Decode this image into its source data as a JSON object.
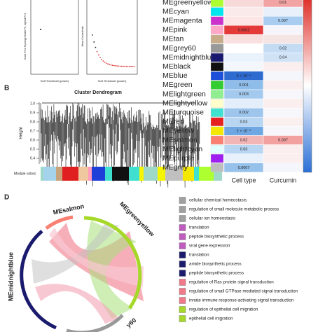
{
  "panel_labels": {
    "b": "B",
    "d": "D"
  },
  "scatter_plots": [
    {
      "x_label": "Soft Threshold (power)",
      "y_label": "Scale Free Topology Model Fit, signed R^2"
    },
    {
      "x_label": "Soft Threshold (power)",
      "y_label": "Mean Connectivity"
    }
  ],
  "dendrogram": {
    "title": "Cluster Dendrogram",
    "y_label": "Height",
    "y_ticks": [
      "0.4",
      "0.5",
      "0.6",
      "0.7",
      "0.8",
      "0.9",
      "1.0"
    ],
    "module_colors_label": "Module colors"
  },
  "heatmap": {
    "columns": [
      "Cell type",
      "Curcumin"
    ],
    "rows": [
      {
        "module": "MEgreenyellow",
        "color": "#adff2f",
        "fills": [
          "#f7d9d9",
          "#f2a3a3"
        ],
        "cells": [
          null,
          "0.01"
        ]
      },
      {
        "module": "MEcyan",
        "color": "#00e5ee",
        "fills": [
          "#fbeaea",
          "#e8f1fb"
        ],
        "cells": [
          null,
          null
        ]
      },
      {
        "module": "MEmagenta",
        "color": "#cc33cc",
        "fills": [
          "#fde5e5",
          "#a9cdf0"
        ],
        "cells": [
          null,
          "0.007"
        ]
      },
      {
        "module": "MEpink",
        "color": "#ffa8c8",
        "fills": [
          "#e53a3a",
          "#f5f5fb"
        ],
        "cells": [
          "0.0002",
          null
        ]
      },
      {
        "module": "MEtan",
        "color": "#c8ac8a",
        "fills": [
          "#f8e0e0",
          "#f4e4e4"
        ],
        "cells": [
          null,
          null
        ]
      },
      {
        "module": "MEgrey60",
        "color": "#999999",
        "fills": [
          "#ffffff",
          "#c3dcf4"
        ],
        "cells": [
          null,
          "0.02"
        ]
      },
      {
        "module": "MEmidnightblue",
        "color": "#191970",
        "fills": [
          "#eaf2fb",
          "#d0e3f6"
        ],
        "cells": [
          null,
          "0.04"
        ]
      },
      {
        "module": "MEblack",
        "color": "#111111",
        "fills": [
          "#f3f7fc",
          "#fbeeee"
        ],
        "cells": [
          null,
          null
        ]
      },
      {
        "module": "MEblue",
        "color": "#1e4fd8",
        "fills": [
          "#2d6bd1",
          "#f4f6fb"
        ],
        "cells": [
          "6 × 10⁻⁵",
          null
        ]
      },
      {
        "module": "MEgreen",
        "color": "#33cc33",
        "fills": [
          "#8fbde9",
          "#fbeeee"
        ],
        "cells": [
          "0.001",
          null
        ]
      },
      {
        "module": "MElightgreen",
        "color": "#90ee90",
        "fills": [
          "#a4c9ee",
          "#f7f7fb"
        ],
        "cells": [
          "0.003",
          null
        ]
      },
      {
        "module": "MElightyellow",
        "color": "#ffffcc",
        "fills": [
          "#e4eefa",
          "#fbeeee"
        ],
        "cells": [
          null,
          null
        ]
      },
      {
        "module": "MEturquoise",
        "color": "#40e0d0",
        "fills": [
          "#9ec6ed",
          "#f7f7fb"
        ],
        "cells": [
          "0.002",
          null
        ]
      },
      {
        "module": "MEred",
        "color": "#e62020",
        "fills": [
          "#b8d5f2",
          "#fbf0f0"
        ],
        "cells": [
          "0.03",
          null
        ]
      },
      {
        "module": "MEyellow",
        "color": "#f5e800",
        "fills": [
          "#6fa7e2",
          "#f7f7fb"
        ],
        "cells": [
          "2 × 10⁻⁴",
          null
        ]
      },
      {
        "module": "MEsalmon",
        "color": "#fa8072",
        "fills": [
          "#f3b6b6",
          "#f2a0a0"
        ],
        "cells": [
          "0.02",
          "0.007"
        ]
      },
      {
        "module": "MElightcyan",
        "color": "#e0ffff",
        "fills": [
          "#b8d5f2",
          "#fbeeee"
        ],
        "cells": [
          "0.03",
          null
        ]
      },
      {
        "module": "MEpurple",
        "color": "#a020f0",
        "fills": [
          "#e8f1fb",
          "#fbeeee"
        ],
        "cells": [
          null,
          null
        ]
      },
      {
        "module": "MEgrey",
        "color": "#bebebe",
        "fills": [
          "#95c1eb",
          "#f4f6fb"
        ],
        "cells": [
          "0.0007",
          null
        ]
      }
    ]
  },
  "chord": {
    "labels": [
      "MEsalmon",
      "MEgreenyellow",
      "MEmidnightblue",
      "y60"
    ]
  },
  "legend": [
    {
      "label": "cellular chemical homeostasis",
      "color": "#a0a0a0"
    },
    {
      "label": "regulation of small molecule metabolic process",
      "color": "#a0a0a0"
    },
    {
      "label": "cellular ion homeostasis",
      "color": "#a0a0a0"
    },
    {
      "label": "translation",
      "color": "#c05cc0"
    },
    {
      "label": "peptide biosynthetic process",
      "color": "#c05cc0"
    },
    {
      "label": "viral gene expression",
      "color": "#c05cc0"
    },
    {
      "label": "translation",
      "color": "#1b1b6e"
    },
    {
      "label": "amide biosynthetic process",
      "color": "#1b1b6e"
    },
    {
      "label": "peptide biosynthetic process",
      "color": "#1b1b6e"
    },
    {
      "label": "regulation of Ras protein signal transduction",
      "color": "#f07a8a"
    },
    {
      "label": "regulation of small GTPase mediated signal transduction",
      "color": "#f07a8a"
    },
    {
      "label": "innate immune response-activating signal transduction",
      "color": "#f07a8a"
    },
    {
      "label": "regulation of epithelial cell migration",
      "color": "#a6d82a"
    },
    {
      "label": "epithelial cell migration",
      "color": "#a6d82a"
    }
  ]
}
